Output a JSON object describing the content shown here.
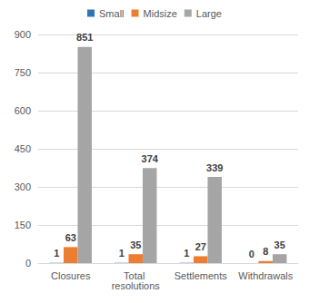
{
  "chart_data": {
    "type": "bar",
    "categories": [
      "Closures",
      "Total resolutions",
      "Settlements",
      "Withdrawals"
    ],
    "series": [
      {
        "name": "Small",
        "color": "#2e75b6",
        "values": [
          1,
          1,
          1,
          0
        ]
      },
      {
        "name": "Midsize",
        "color": "#ed7d31",
        "values": [
          63,
          35,
          27,
          8
        ]
      },
      {
        "name": "Large",
        "color": "#a5a5a5",
        "values": [
          851,
          374,
          339,
          35
        ]
      }
    ],
    "ylim": [
      0,
      900
    ],
    "yticks": [
      0,
      150,
      300,
      450,
      600,
      750,
      900
    ],
    "grid": true,
    "legend": "top",
    "data_labels": true
  }
}
